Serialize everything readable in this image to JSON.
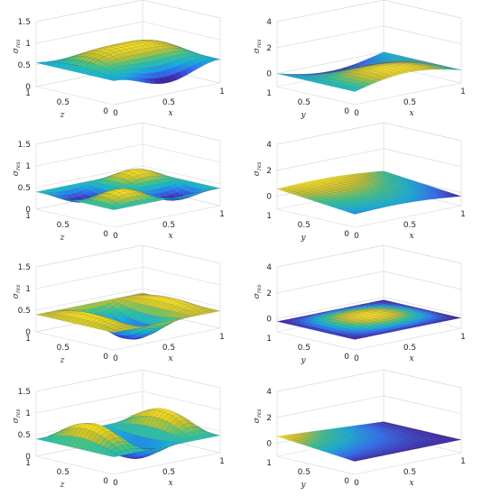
{
  "chart_data": [
    {
      "type": "surface",
      "zlabel": "σ_res",
      "xlabel": "x",
      "ylabel": "z",
      "xticks": [
        "0",
        "0.5",
        "1"
      ],
      "yticks": [
        "1",
        "0.5",
        "0"
      ],
      "zticks": [
        "1.5",
        "1",
        "0.5",
        "0"
      ],
      "zlim": [
        0,
        1.5
      ],
      "shape": "dome",
      "amplitude": 0.7
    },
    {
      "type": "surface",
      "zlabel": "σ_res",
      "xlabel": "x",
      "ylabel": "y",
      "xticks": [
        "0",
        "0.5",
        "1"
      ],
      "yticks": [
        "1",
        "0.5",
        "0"
      ],
      "zticks": [
        "4",
        "2",
        "0"
      ],
      "zlim": [
        -1,
        4
      ],
      "shape": "ridge",
      "amplitude": 0.8
    },
    {
      "type": "surface",
      "zlabel": "σ_res",
      "xlabel": "x",
      "ylabel": "z",
      "xticks": [
        "0",
        "0.5",
        "1"
      ],
      "yticks": [
        "1",
        "0.5",
        "0"
      ],
      "zticks": [
        "1.5",
        "1",
        "0.5",
        "0"
      ],
      "zlim": [
        0,
        1.5
      ],
      "shape": "flat-spikes",
      "amplitude": 0.4
    },
    {
      "type": "surface",
      "zlabel": "σ_res",
      "xlabel": "x",
      "ylabel": "y",
      "xticks": [
        "0",
        "0.5",
        "1"
      ],
      "yticks": [
        "1",
        "0.5",
        "0"
      ],
      "zticks": [
        "4",
        "2",
        "0"
      ],
      "zlim": [
        -1,
        4
      ],
      "shape": "slope",
      "amplitude": 0.7
    },
    {
      "type": "surface",
      "zlabel": "σ_res",
      "xlabel": "x",
      "ylabel": "z",
      "xticks": [
        "0",
        "0.5",
        "1"
      ],
      "yticks": [
        "1",
        "0.5",
        "0"
      ],
      "zticks": [
        "1.5",
        "1",
        "0.5",
        "0"
      ],
      "zlim": [
        0,
        1.5
      ],
      "shape": "wave2",
      "amplitude": 0.6
    },
    {
      "type": "surface",
      "zlabel": "σ_res",
      "xlabel": "x",
      "ylabel": "y",
      "xticks": [
        "0",
        "0.5",
        "1"
      ],
      "yticks": [
        "1",
        "0.5",
        "0"
      ],
      "zticks": [
        "4",
        "2",
        "0"
      ],
      "zlim": [
        -1,
        4
      ],
      "shape": "saddle-low",
      "amplitude": 0.5
    },
    {
      "type": "surface",
      "zlabel": "σ_res",
      "xlabel": "x",
      "ylabel": "z",
      "xticks": [
        "0",
        "0.5",
        "1"
      ],
      "yticks": [
        "1",
        "0.5",
        "0"
      ],
      "zticks": [
        "1.5",
        "1",
        "0.5",
        "0"
      ],
      "zlim": [
        0,
        1.5
      ],
      "shape": "wave3",
      "amplitude": 0.8
    },
    {
      "type": "surface",
      "zlabel": "σ_res",
      "xlabel": "x",
      "ylabel": "y",
      "xticks": [
        "0",
        "0.5",
        "1"
      ],
      "yticks": [
        "1",
        "0.5",
        "0"
      ],
      "zticks": [
        "4",
        "2",
        "0"
      ],
      "zlim": [
        -1,
        4
      ],
      "shape": "slope-high",
      "amplitude": 0.6
    }
  ],
  "colormap": [
    "#3e26a8",
    "#2d6ff6",
    "#13b3d8",
    "#3cc48b",
    "#c7c12a",
    "#f9e021"
  ]
}
